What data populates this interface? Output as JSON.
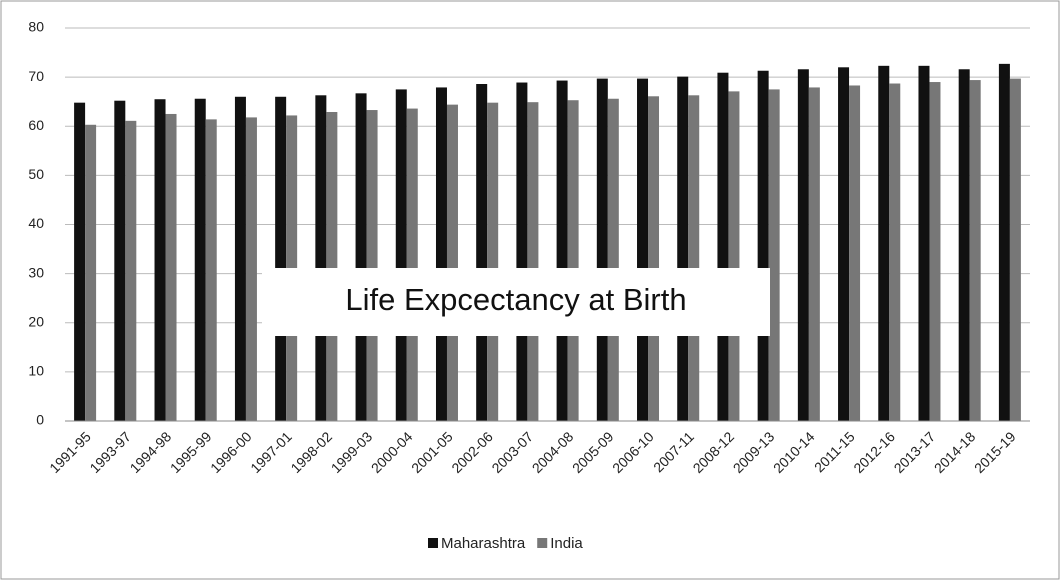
{
  "chart_data": {
    "type": "bar",
    "title": "Life Expcectancy at Birth",
    "categories": [
      "1991-95",
      "1993-97",
      "1994-98",
      "1995-99",
      "1996-00",
      "1997-01",
      "1998-02",
      "1999-03",
      "2000-04",
      "2001-05",
      "2002-06",
      "2003-07",
      "2004-08",
      "2005-09",
      "2006-10",
      "2007-11",
      "2008-12",
      "2009-13",
      "2010-14",
      "2011-15",
      "2012-16",
      "2013-17",
      "2014-18",
      "2015-19"
    ],
    "series": [
      {
        "name": "Maharashtra",
        "color": "#111111",
        "values": [
          64.8,
          65.2,
          65.5,
          65.6,
          66.0,
          66.0,
          66.3,
          66.7,
          67.5,
          67.9,
          68.6,
          68.9,
          69.3,
          69.7,
          69.7,
          70.1,
          70.9,
          71.3,
          71.6,
          72.0,
          72.3,
          72.3,
          71.6,
          72.7
        ]
      },
      {
        "name": "India",
        "color": "#777777",
        "values": [
          60.3,
          61.1,
          62.5,
          61.4,
          61.8,
          62.2,
          62.9,
          63.3,
          63.6,
          64.4,
          64.8,
          64.9,
          65.3,
          65.6,
          66.1,
          66.3,
          67.1,
          67.5,
          67.9,
          68.3,
          68.7,
          69.0,
          69.4,
          69.7
        ]
      }
    ],
    "ylim": [
      0,
      80
    ],
    "yticks": [
      0,
      10,
      20,
      30,
      40,
      50,
      60,
      70,
      80
    ],
    "grid": true,
    "legend": "bottom"
  }
}
